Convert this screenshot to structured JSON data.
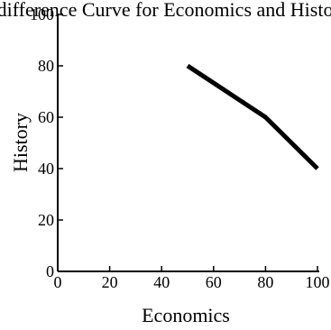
{
  "chart_data": {
    "type": "line",
    "title": "Indifference Curve for Economics and History",
    "xlabel": "Economics",
    "ylabel": "History",
    "xlim": [
      0,
      100
    ],
    "ylim": [
      0,
      100
    ],
    "x_ticks": [
      0,
      20,
      40,
      60,
      80,
      100
    ],
    "y_ticks": [
      0,
      20,
      40,
      60,
      80,
      100
    ],
    "grid": false,
    "series": [
      {
        "x": [
          50,
          80,
          100
        ],
        "y": [
          80,
          60,
          40
        ],
        "color": "#000000"
      }
    ]
  }
}
